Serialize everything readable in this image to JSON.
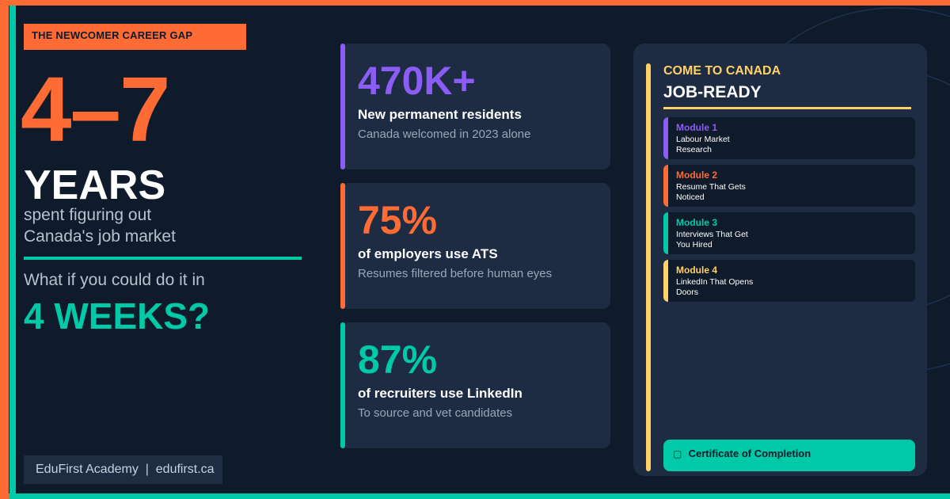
{
  "left": {
    "tag": "THE NEWCOMER CAREER GAP",
    "range": "4–7",
    "years": "YEARS",
    "years_sub_1": "spent figuring out",
    "years_sub_2": "Canada's job market",
    "question": "What if you could do it in",
    "weeks": "4 WEEKS?",
    "footer": "EduFirst Academy  |  edufirst.ca"
  },
  "stats": [
    {
      "value": "470K+",
      "heading": "New permanent residents",
      "sub": "Canada welcomed in 2023 alone",
      "color": "#8b5cf6"
    },
    {
      "value": "75%",
      "heading": "of employers use ATS",
      "sub": "Resumes filtered before human eyes",
      "color": "#ff6b35"
    },
    {
      "value": "87%",
      "heading": "of recruiters use LinkedIn",
      "sub": "To source and vet candidates",
      "color": "#00c9a7"
    }
  ],
  "panel": {
    "title_top": "COME TO CANADA",
    "title_main": "JOB-READY",
    "modules": [
      {
        "name": "Module 1",
        "desc": "Labour Market Research",
        "color": "#8b5cf6"
      },
      {
        "name": "Module 2",
        "desc": "Resume That Gets Noticed",
        "color": "#ff6b35"
      },
      {
        "name": "Module 3",
        "desc": "Interviews That Get You Hired",
        "color": "#00c9a7"
      },
      {
        "name": "Module 4",
        "desc": "LinkedIn That Opens Doors",
        "color": "#ffd166"
      }
    ],
    "certificate": "Certificate of Completion",
    "certificate_icon": "certificate-icon"
  },
  "colors": {
    "background": "#0f1a2a",
    "orange": "#ff6b35",
    "teal": "#00c9a7",
    "purple": "#8b5cf6",
    "yellow": "#ffd166",
    "card": "#1d2c43"
  }
}
